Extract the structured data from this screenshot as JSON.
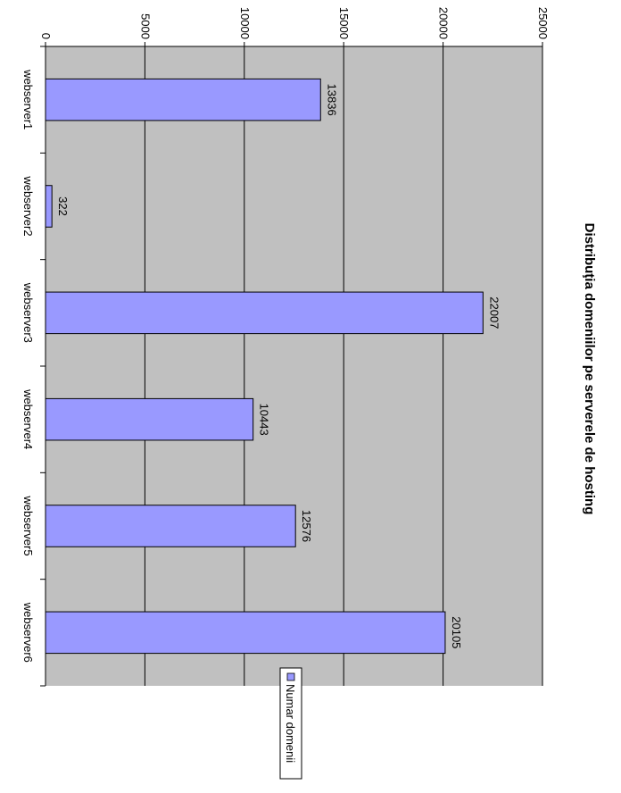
{
  "chart_data": {
    "type": "bar",
    "title": "Distribuţia domeniilor pe serverele de hosting",
    "categories": [
      "webserver1",
      "webserver2",
      "webserver3",
      "webserver4",
      "webserver5",
      "webserver6"
    ],
    "series": [
      {
        "name": "Numar domenii",
        "values": [
          13836,
          322,
          22007,
          10443,
          12576,
          20105
        ]
      }
    ],
    "ylim": [
      0,
      25000
    ],
    "yticks": [
      0,
      5000,
      10000,
      15000,
      20000,
      25000
    ],
    "grid": true,
    "legend": "bottom-right",
    "orientation": "rotated-90-clockwise",
    "colors": {
      "bar": "#9999ff",
      "bar_edge": "#000000",
      "plot_bg": "#c0c0c0",
      "grid": "#000000"
    }
  }
}
